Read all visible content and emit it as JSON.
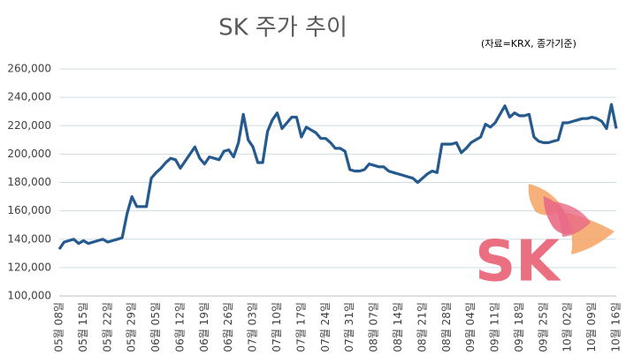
{
  "chart_data": {
    "type": "line",
    "title": "SK 주가 추이",
    "note": "(자료=KRX, 종가기준)",
    "logo_text": "SK",
    "categories": [
      "05월 08일",
      null,
      null,
      null,
      null,
      "05월 15일",
      null,
      null,
      null,
      null,
      "05월 22일",
      null,
      null,
      null,
      null,
      "05월 29일",
      null,
      null,
      null,
      null,
      "06월 05일",
      null,
      null,
      null,
      null,
      "06월 12일",
      null,
      null,
      null,
      null,
      "06월 19일",
      null,
      null,
      null,
      null,
      "06월 26일",
      null,
      null,
      null,
      null,
      "07월 03일",
      null,
      null,
      null,
      null,
      "07월 10일",
      null,
      null,
      null,
      null,
      "07월 17일",
      null,
      null,
      null,
      null,
      "07월 24일",
      null,
      null,
      null,
      null,
      "07월 31일",
      null,
      null,
      null,
      null,
      "08월 07일",
      null,
      null,
      null,
      null,
      "08월 14일",
      null,
      null,
      null,
      null,
      "08월 21일",
      null,
      null,
      null,
      null,
      "08월 28일",
      null,
      null,
      null,
      null,
      "09월 04일",
      null,
      null,
      null,
      null,
      "09월 11일",
      null,
      null,
      null,
      null,
      "09월 18일",
      null,
      null,
      null,
      null,
      "09월 25일",
      null,
      null,
      null,
      null,
      "10월 02일",
      null,
      null,
      null,
      null,
      "10월 09일",
      null,
      null,
      null,
      null,
      "10월 16일"
    ],
    "series": [
      {
        "name": "SK",
        "color": "#245a8e",
        "values": [
          133000,
          138000,
          139000,
          140000,
          137000,
          139000,
          137000,
          138000,
          139000,
          140000,
          138000,
          139000,
          140000,
          141000,
          158000,
          170000,
          163000,
          163000,
          163000,
          183000,
          187000,
          190000,
          194000,
          197000,
          196000,
          190000,
          195000,
          200000,
          205000,
          197000,
          193000,
          198000,
          197000,
          196000,
          202000,
          203000,
          198000,
          208000,
          228000,
          210000,
          205000,
          194000,
          194000,
          216000,
          224000,
          229000,
          218000,
          222000,
          226000,
          226000,
          212000,
          219000,
          217000,
          215000,
          211000,
          211000,
          208000,
          204000,
          204000,
          202000,
          189000,
          188000,
          188000,
          189000,
          193000,
          192000,
          191000,
          191000,
          188000,
          187000,
          186000,
          185000,
          184000,
          183000,
          180000,
          183000,
          186000,
          188000,
          187000,
          207000,
          207000,
          207000,
          208000,
          201000,
          204000,
          208000,
          210000,
          212000,
          221000,
          219000,
          222000,
          228000,
          234000,
          226000,
          229000,
          227000,
          227000,
          228000,
          212000,
          209000,
          208000,
          208000,
          209000,
          210000,
          222000,
          222000,
          223000,
          224000,
          225000,
          225000,
          226000,
          225000,
          223000,
          218000,
          235000,
          218000
        ]
      }
    ],
    "ylim": [
      100000,
      260000
    ],
    "yticks": [
      {
        "value": 100000,
        "label": "100,000"
      },
      {
        "value": 120000,
        "label": "120,000"
      },
      {
        "value": 140000,
        "label": "140,000"
      },
      {
        "value": 160000,
        "label": "160,000"
      },
      {
        "value": 180000,
        "label": "180,000"
      },
      {
        "value": 200000,
        "label": "200,000"
      },
      {
        "value": 220000,
        "label": "220,000"
      },
      {
        "value": 240000,
        "label": "240,000"
      },
      {
        "value": 260000,
        "label": "260,000"
      }
    ],
    "grid": true
  }
}
